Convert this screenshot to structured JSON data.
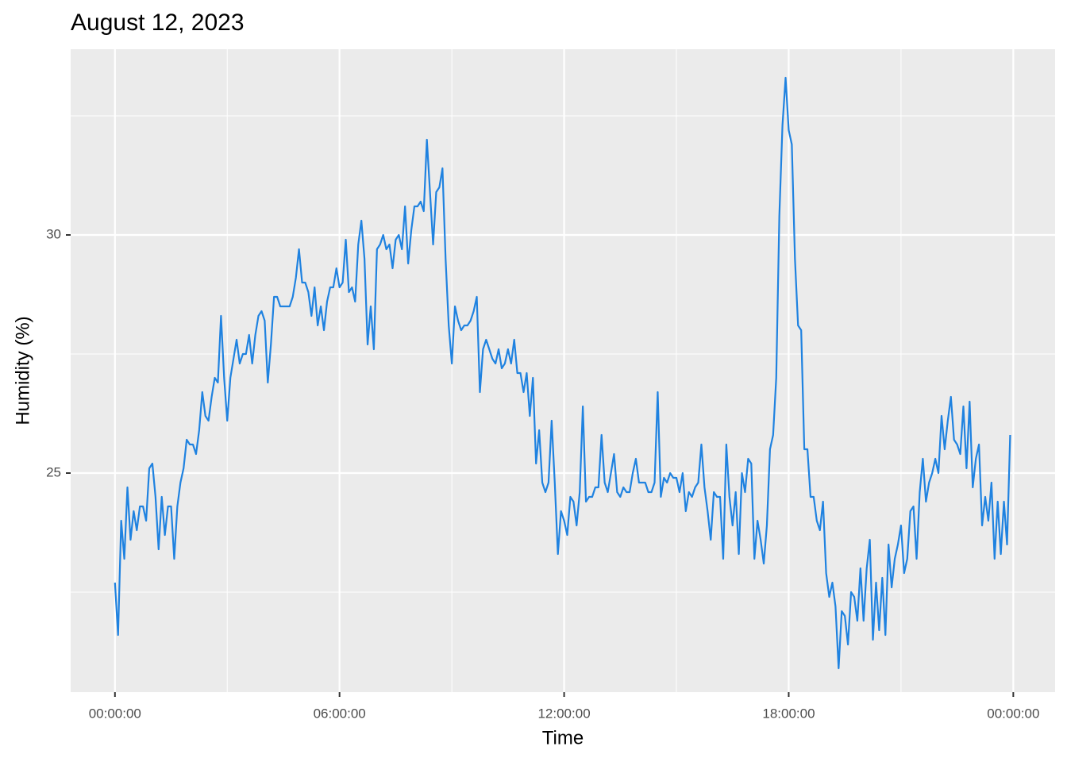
{
  "chart_data": {
    "type": "line",
    "title": "August 12, 2023",
    "x_label": "Time",
    "y_label": "Humidity (%)",
    "color": "#1f82e0",
    "grid": true,
    "xlim": [
      -71,
      1507
    ],
    "ylim": [
      20.4,
      33.9
    ],
    "xticks": [
      {
        "value": 0,
        "label": "00:00:00"
      },
      {
        "value": 360,
        "label": "06:00:00"
      },
      {
        "value": 720,
        "label": "12:00:00"
      },
      {
        "value": 1080,
        "label": "18:00:00"
      },
      {
        "value": 1440,
        "label": "00:00:00"
      }
    ],
    "yticks": [
      25,
      30
    ],
    "minor_xticks": [
      180,
      540,
      900,
      1260
    ],
    "minor_yticks": [
      22.5,
      27.5,
      32.5
    ],
    "x": [
      0,
      5,
      10,
      15,
      20,
      25,
      30,
      35,
      40,
      45,
      50,
      55,
      60,
      65,
      70,
      75,
      80,
      85,
      90,
      95,
      100,
      105,
      110,
      115,
      120,
      125,
      130,
      135,
      140,
      145,
      150,
      155,
      160,
      165,
      170,
      175,
      180,
      185,
      190,
      195,
      200,
      205,
      210,
      215,
      220,
      225,
      230,
      235,
      240,
      245,
      250,
      255,
      260,
      265,
      270,
      275,
      280,
      285,
      290,
      295,
      300,
      305,
      310,
      315,
      320,
      325,
      330,
      335,
      340,
      345,
      350,
      355,
      360,
      365,
      370,
      375,
      380,
      385,
      390,
      395,
      400,
      405,
      410,
      415,
      420,
      425,
      430,
      435,
      440,
      445,
      450,
      455,
      460,
      465,
      470,
      475,
      480,
      485,
      490,
      495,
      500,
      505,
      510,
      515,
      520,
      525,
      530,
      535,
      540,
      545,
      550,
      555,
      560,
      565,
      570,
      575,
      580,
      585,
      590,
      595,
      600,
      605,
      610,
      615,
      620,
      625,
      630,
      635,
      640,
      645,
      650,
      655,
      660,
      665,
      670,
      675,
      680,
      685,
      690,
      695,
      700,
      705,
      710,
      715,
      720,
      725,
      730,
      735,
      740,
      745,
      750,
      755,
      760,
      765,
      770,
      775,
      780,
      785,
      790,
      795,
      800,
      805,
      810,
      815,
      820,
      825,
      830,
      835,
      840,
      845,
      850,
      855,
      860,
      865,
      870,
      875,
      880,
      885,
      890,
      895,
      900,
      905,
      910,
      915,
      920,
      925,
      930,
      935,
      940,
      945,
      950,
      955,
      960,
      965,
      970,
      975,
      980,
      985,
      990,
      995,
      1000,
      1005,
      1010,
      1015,
      1020,
      1025,
      1030,
      1035,
      1040,
      1045,
      1050,
      1055,
      1060,
      1065,
      1070,
      1075,
      1080,
      1085,
      1090,
      1095,
      1100,
      1105,
      1110,
      1115,
      1120,
      1125,
      1130,
      1135,
      1140,
      1145,
      1150,
      1155,
      1160,
      1165,
      1170,
      1175,
      1180,
      1185,
      1190,
      1195,
      1200,
      1205,
      1210,
      1215,
      1220,
      1225,
      1230,
      1235,
      1240,
      1245,
      1250,
      1255,
      1260,
      1265,
      1270,
      1275,
      1280,
      1285,
      1290,
      1295,
      1300,
      1305,
      1310,
      1315,
      1320,
      1325,
      1330,
      1335,
      1340,
      1345,
      1350,
      1355,
      1360,
      1365,
      1370,
      1375,
      1380,
      1385,
      1390,
      1395,
      1400,
      1405,
      1410,
      1415,
      1420,
      1425,
      1430,
      1435
    ],
    "values": [
      22.7,
      21.6,
      24.0,
      23.2,
      24.7,
      23.6,
      24.2,
      23.8,
      24.3,
      24.3,
      24.0,
      25.1,
      25.2,
      24.5,
      23.4,
      24.5,
      23.7,
      24.3,
      24.3,
      23.2,
      24.3,
      24.8,
      25.1,
      25.7,
      25.6,
      25.6,
      25.4,
      25.9,
      26.7,
      26.2,
      26.1,
      26.6,
      27.0,
      26.9,
      28.3,
      27.0,
      26.1,
      27.0,
      27.4,
      27.8,
      27.3,
      27.5,
      27.5,
      27.9,
      27.3,
      27.9,
      28.3,
      28.4,
      28.2,
      26.9,
      27.7,
      28.7,
      28.7,
      28.5,
      28.5,
      28.5,
      28.5,
      28.7,
      29.1,
      29.7,
      29.0,
      29.0,
      28.8,
      28.3,
      28.9,
      28.1,
      28.5,
      28.0,
      28.6,
      28.9,
      28.9,
      29.3,
      28.9,
      29.0,
      29.9,
      28.8,
      28.9,
      28.6,
      29.8,
      30.3,
      29.5,
      27.7,
      28.5,
      27.6,
      29.7,
      29.8,
      30.0,
      29.7,
      29.8,
      29.3,
      29.9,
      30.0,
      29.7,
      30.6,
      29.4,
      30.1,
      30.6,
      30.6,
      30.7,
      30.5,
      32.0,
      30.9,
      29.8,
      30.9,
      31.0,
      31.4,
      29.5,
      28.1,
      27.3,
      28.5,
      28.2,
      28.0,
      28.1,
      28.1,
      28.2,
      28.4,
      28.7,
      26.7,
      27.6,
      27.8,
      27.6,
      27.4,
      27.3,
      27.6,
      27.2,
      27.3,
      27.6,
      27.3,
      27.8,
      27.1,
      27.1,
      26.7,
      27.1,
      26.2,
      27.0,
      25.2,
      25.9,
      24.8,
      24.6,
      24.8,
      26.1,
      24.8,
      23.3,
      24.2,
      24.0,
      23.7,
      24.5,
      24.4,
      23.9,
      24.6,
      26.4,
      24.4,
      24.5,
      24.5,
      24.7,
      24.7,
      25.8,
      24.8,
      24.6,
      25.0,
      25.4,
      24.6,
      24.5,
      24.7,
      24.6,
      24.6,
      25.0,
      25.3,
      24.8,
      24.8,
      24.8,
      24.6,
      24.6,
      24.8,
      26.7,
      24.5,
      24.9,
      24.8,
      25.0,
      24.9,
      24.9,
      24.6,
      25.0,
      24.2,
      24.6,
      24.5,
      24.7,
      24.8,
      25.6,
      24.7,
      24.2,
      23.6,
      24.6,
      24.5,
      24.5,
      23.2,
      25.6,
      24.5,
      23.9,
      24.6,
      23.3,
      25.0,
      24.6,
      25.3,
      25.2,
      23.2,
      24.0,
      23.6,
      23.1,
      23.9,
      25.5,
      25.8,
      27.0,
      30.4,
      32.3,
      33.3,
      32.2,
      31.9,
      29.5,
      28.1,
      28.0,
      25.5,
      25.5,
      24.5,
      24.5,
      24.0,
      23.8,
      24.4,
      22.9,
      22.4,
      22.7,
      22.2,
      20.9,
      22.1,
      22.0,
      21.4,
      22.5,
      22.4,
      21.9,
      23.0,
      21.9,
      23.0,
      23.6,
      21.5,
      22.7,
      21.7,
      22.8,
      21.6,
      23.5,
      22.6,
      23.2,
      23.5,
      23.9,
      22.9,
      23.2,
      24.2,
      24.3,
      23.2,
      24.6,
      25.3,
      24.4,
      24.8,
      25.0,
      25.3,
      25.0,
      26.2,
      25.5,
      26.1,
      26.6,
      25.7,
      25.6,
      25.4,
      26.4,
      25.1,
      26.5,
      24.7,
      25.3,
      25.6,
      23.9,
      24.5,
      24.0,
      24.8,
      23.2,
      24.4,
      23.3,
      24.4,
      23.5,
      25.8
    ]
  }
}
